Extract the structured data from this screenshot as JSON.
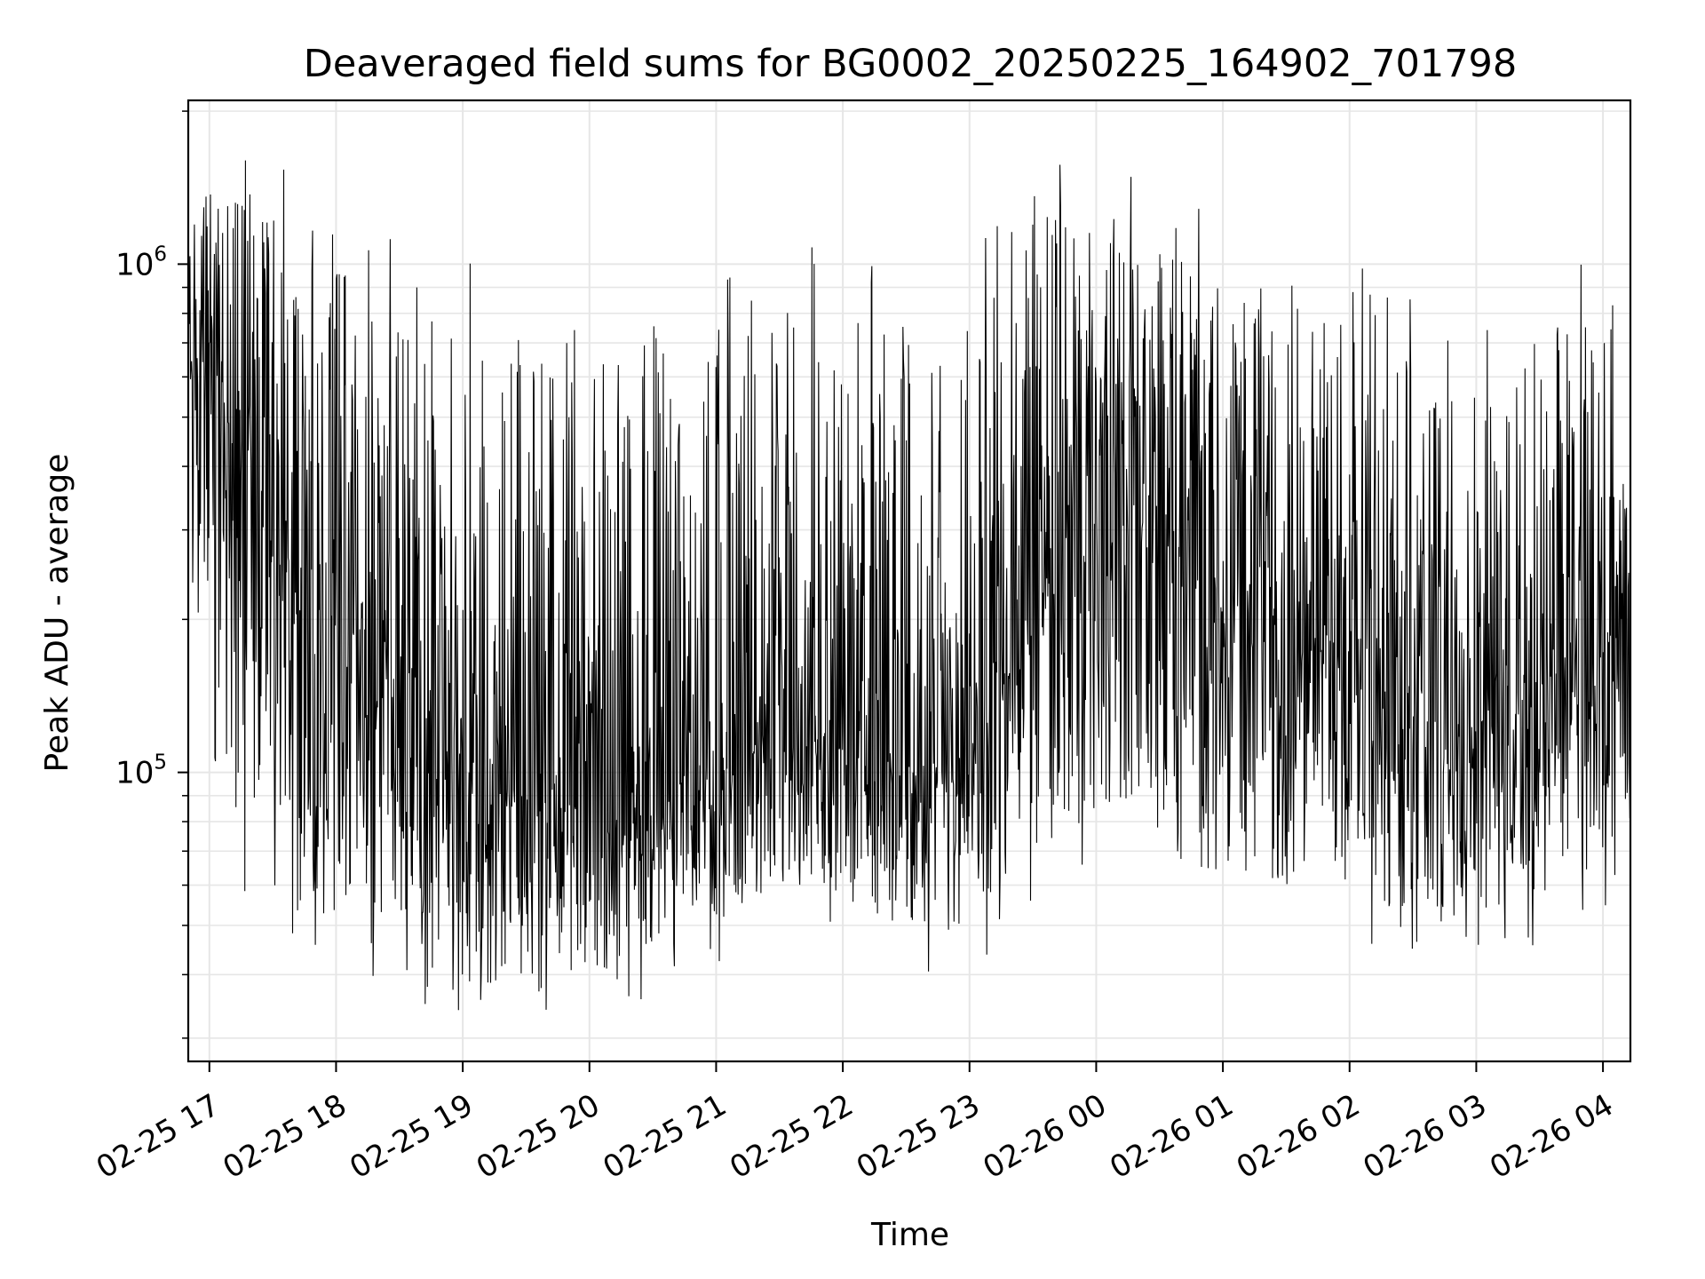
{
  "chart_data": {
    "type": "line",
    "title": "Deaveraged field sums for BG0002_20250225_164902_701798",
    "xlabel": "Time",
    "ylabel": "Peak ADU - average",
    "y_scale": "log",
    "ylim": [
      27000,
      2100000
    ],
    "xlim": [
      "2025-02-25 16:50",
      "2025-02-26 04:13"
    ],
    "grid": true,
    "line_color": "#000000",
    "x_ticks": [
      {
        "time": "2025-02-25 17:00",
        "label": "02-25 17"
      },
      {
        "time": "2025-02-25 18:00",
        "label": "02-25 18"
      },
      {
        "time": "2025-02-25 19:00",
        "label": "02-25 19"
      },
      {
        "time": "2025-02-25 20:00",
        "label": "02-25 20"
      },
      {
        "time": "2025-02-25 21:00",
        "label": "02-25 21"
      },
      {
        "time": "2025-02-25 22:00",
        "label": "02-25 22"
      },
      {
        "time": "2025-02-25 23:00",
        "label": "02-25 23"
      },
      {
        "time": "2025-02-26 00:00",
        "label": "02-26 00"
      },
      {
        "time": "2025-02-26 01:00",
        "label": "02-26 01"
      },
      {
        "time": "2025-02-26 02:00",
        "label": "02-26 02"
      },
      {
        "time": "2025-02-26 03:00",
        "label": "02-26 03"
      },
      {
        "time": "2025-02-26 04:00",
        "label": "02-26 04"
      }
    ],
    "y_ticks": [
      {
        "value": 100000,
        "base": "10",
        "exp": "5"
      },
      {
        "value": 1000000,
        "base": "10",
        "exp": "6"
      }
    ],
    "series": [
      {
        "x": [
          "2025-02-25 16:50",
          "2025-02-25 17:00",
          "2025-02-25 17:15",
          "2025-02-25 17:30",
          "2025-02-25 17:45",
          "2025-02-25 18:00",
          "2025-02-25 18:15",
          "2025-02-25 18:30",
          "2025-02-25 18:45",
          "2025-02-25 19:00",
          "2025-02-25 19:15",
          "2025-02-25 19:30",
          "2025-02-25 19:45",
          "2025-02-25 20:00",
          "2025-02-25 20:15",
          "2025-02-25 20:30",
          "2025-02-25 20:45",
          "2025-02-25 21:00",
          "2025-02-25 21:15",
          "2025-02-25 21:30",
          "2025-02-25 21:45",
          "2025-02-25 22:00",
          "2025-02-25 22:15",
          "2025-02-25 22:30",
          "2025-02-25 22:45",
          "2025-02-25 23:00",
          "2025-02-25 23:15",
          "2025-02-25 23:30",
          "2025-02-25 23:45",
          "2025-02-26 00:00",
          "2025-02-26 00:15",
          "2025-02-26 00:30",
          "2025-02-26 00:45",
          "2025-02-26 01:00",
          "2025-02-26 01:15",
          "2025-02-26 01:30",
          "2025-02-26 01:45",
          "2025-02-26 02:00",
          "2025-02-26 02:15",
          "2025-02-26 02:30",
          "2025-02-26 02:45",
          "2025-02-26 03:00",
          "2025-02-26 03:15",
          "2025-02-26 03:30",
          "2025-02-26 03:45",
          "2025-02-26 04:00",
          "2025-02-26 04:13"
        ],
        "y_low": [
          260000,
          150000,
          70000,
          60000,
          55000,
          50000,
          45000,
          40000,
          38000,
          36000,
          38000,
          40000,
          40000,
          40000,
          42000,
          45000,
          50000,
          52000,
          55000,
          58000,
          60000,
          55000,
          52000,
          50000,
          48000,
          50000,
          55000,
          65000,
          75000,
          80000,
          78000,
          75000,
          70000,
          65000,
          60000,
          62000,
          65000,
          60000,
          55000,
          52000,
          50000,
          52000,
          55000,
          58000,
          60000,
          65000,
          80000
        ],
        "y_mid": [
          600000,
          650000,
          400000,
          280000,
          230000,
          200000,
          170000,
          150000,
          120000,
          100000,
          95000,
          90000,
          85000,
          85000,
          88000,
          90000,
          95000,
          100000,
          110000,
          120000,
          120000,
          110000,
          105000,
          100000,
          100000,
          110000,
          140000,
          220000,
          330000,
          350000,
          320000,
          280000,
          240000,
          200000,
          180000,
          170000,
          180000,
          160000,
          140000,
          130000,
          120000,
          125000,
          130000,
          140000,
          150000,
          170000,
          200000
        ],
        "y_high": [
          1100000,
          1500000,
          1400000,
          1250000,
          1100000,
          1000000,
          900000,
          850000,
          800000,
          800000,
          750000,
          700000,
          650000,
          600000,
          600000,
          620000,
          650000,
          700000,
          750000,
          800000,
          850000,
          800000,
          750000,
          700000,
          700000,
          800000,
          1000000,
          1200000,
          1300000,
          1300000,
          1200000,
          1100000,
          1000000,
          900000,
          850000,
          800000,
          820000,
          800000,
          700000,
          650000,
          600000,
          620000,
          650000,
          700000,
          750000,
          800000,
          500000
        ],
        "y_extreme_max": 1600000,
        "y_extreme_min": 32000
      }
    ]
  }
}
